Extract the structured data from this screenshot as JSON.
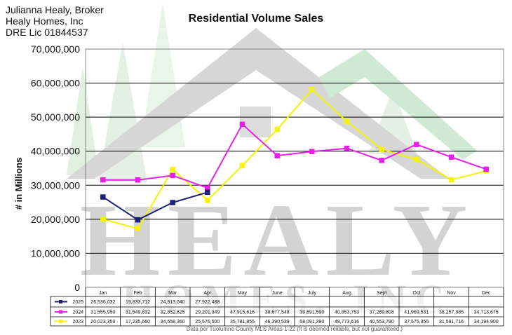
{
  "header": {
    "line1": "Julianna Healy, Broker",
    "line2": "Healy Homes, Inc",
    "line3": "DRE Lic 01844537"
  },
  "watermark": {
    "big": "HEALY",
    "small": "HOMES, INC"
  },
  "footnote": "Data per Tuolumne County MLS Areas 1-22 (It is deemed reliable, but not guaranteed.)",
  "colors": {
    "s2025": "#1b1f7a",
    "s2024": "#e81fe8",
    "s2023": "#f4f400",
    "grid": "#000000",
    "plot_bg": "#ffffff"
  },
  "chart_data": {
    "type": "line",
    "title": "Residential Volume Sales",
    "ylabel": "# in Millions",
    "xlabel": "",
    "ylim": [
      0,
      70000000
    ],
    "yticks": [
      0,
      10000000,
      20000000,
      30000000,
      40000000,
      50000000,
      60000000,
      70000000
    ],
    "ytick_labels": [
      "0",
      "10,000,000",
      "20,000,000",
      "30,000,000",
      "40,000,000",
      "50,000,000",
      "60,000,000",
      "70,000,000"
    ],
    "categories": [
      "Jan",
      "Feb",
      "Mar",
      "Apr",
      "May",
      "June",
      "July",
      "Aug",
      "Sept",
      "Oct",
      "Nov",
      "Dec"
    ],
    "grid": true,
    "legend": "data-table",
    "series": [
      {
        "name": "2025",
        "color": "#1b1f7a",
        "values": [
          26536032,
          19833712,
          24913040,
          27922488,
          null,
          null,
          null,
          null,
          null,
          null,
          null,
          null
        ],
        "labels": [
          "26,536,032",
          "19,833,712",
          "24,913,040",
          "27,922,488",
          "",
          "",
          "",
          "",
          "",
          "",
          "",
          ""
        ]
      },
      {
        "name": "2024",
        "color": "#e81fe8",
        "values": [
          31555950,
          31549832,
          32852625,
          29201349,
          47915616,
          38677548,
          39891590,
          40853753,
          37289808,
          41969531,
          38257385,
          34713675
        ],
        "labels": [
          "31,555,950",
          "31,549,832",
          "32,852,625",
          "29,201,349",
          "47,915,616",
          "38,677,548",
          "39,891,590",
          "40,853,753",
          "37,289,808",
          "41,969,531",
          "38,257,385",
          "34,713,675"
        ]
      },
      {
        "name": "2023",
        "color": "#f4f400",
        "values": [
          20023350,
          17235660,
          34658360,
          25576500,
          35781855,
          46390539,
          58091390,
          48773616,
          40553790,
          37575355,
          31591716,
          34194900
        ],
        "labels": [
          "20,023,350",
          "17,235,660",
          "34,658,360",
          "25,576,500",
          "35,781,855",
          "46,390,539",
          "58,091,390",
          "48,773,616",
          "40,553,790",
          "37,575,355",
          "31,591,716",
          "34,194,900"
        ]
      }
    ]
  }
}
